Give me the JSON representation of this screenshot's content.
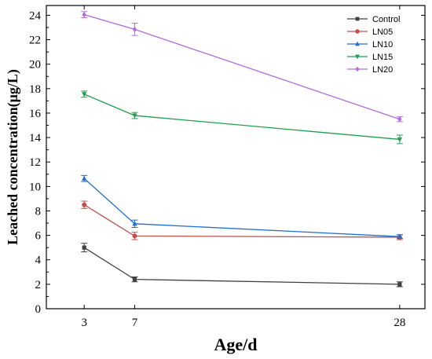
{
  "chart_data": {
    "type": "line",
    "xlabel": "Age/d",
    "ylabel": "Leached concentration(μg/L)",
    "x": [
      3,
      7,
      28
    ],
    "xticks": [
      3,
      7,
      28
    ],
    "xlim": [
      0,
      30
    ],
    "ylim": [
      0,
      24.8
    ],
    "yticks": [
      0,
      2,
      4,
      6,
      8,
      10,
      12,
      14,
      16,
      18,
      20,
      22,
      24
    ],
    "grid": false,
    "legend_position": "top-right",
    "series": [
      {
        "name": "Control",
        "color": "#404040",
        "marker": "square",
        "values": [
          5.0,
          2.4,
          2.0
        ],
        "errors": [
          0.35,
          0.2,
          0.2
        ]
      },
      {
        "name": "LN05",
        "color": "#c0504d",
        "marker": "circle",
        "values": [
          8.5,
          5.95,
          5.85
        ],
        "errors": [
          0.3,
          0.3,
          0.2
        ]
      },
      {
        "name": "LN10",
        "color": "#1f6fd1",
        "marker": "triangle-up",
        "values": [
          10.65,
          6.95,
          5.9
        ],
        "errors": [
          0.25,
          0.3,
          0.15
        ]
      },
      {
        "name": "LN15",
        "color": "#1f9f4f",
        "marker": "triangle-down",
        "values": [
          17.55,
          15.8,
          13.85
        ],
        "errors": [
          0.25,
          0.25,
          0.35
        ]
      },
      {
        "name": "LN20",
        "color": "#b36ad8",
        "marker": "diamond",
        "values": [
          24.05,
          22.85,
          15.5
        ],
        "errors": [
          0.25,
          0.5,
          0.2
        ]
      }
    ]
  }
}
